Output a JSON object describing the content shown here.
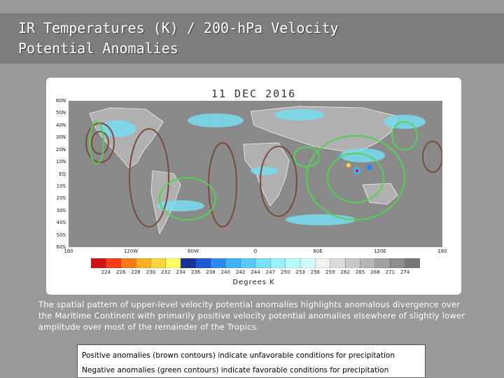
{
  "slide": {
    "title_line1": "IR Temperatures (K) / 200-hPa Velocity",
    "title_line2": "Potential Anomalies"
  },
  "map": {
    "date": "11 DEC 2016",
    "latitude_labels": [
      "60N",
      "50N",
      "40N",
      "30N",
      "20N",
      "10N",
      "EQ",
      "10S",
      "20S",
      "30S",
      "40S",
      "50S",
      "60S"
    ],
    "longitude_labels": [
      "180",
      "120W",
      "60W",
      "0",
      "60E",
      "120E",
      "180"
    ],
    "colorbar": {
      "labels": [
        "224",
        "226",
        "228",
        "230",
        "232",
        "234",
        "236",
        "238",
        "240",
        "242",
        "244",
        "247",
        "250",
        "253",
        "256",
        "259",
        "262",
        "265",
        "268",
        "271",
        "274"
      ],
      "colors": [
        "#d01414",
        "#ff3a14",
        "#ff7a14",
        "#ffae1e",
        "#ffd43a",
        "#ffff64",
        "#14329a",
        "#1a5ad2",
        "#2c8af0",
        "#3cb4ff",
        "#5ac8ff",
        "#78e0ff",
        "#96f0ff",
        "#b4ffff",
        "#d2ffff",
        "#f0f0f0",
        "#dcdcdc",
        "#c8c8c8",
        "#b4b4b4",
        "#a0a0a0",
        "#8c8c8c",
        "#787878"
      ],
      "units": "Degrees K"
    },
    "contour_colors": {
      "positive": "#7a4a3a",
      "negative": "#52d452"
    },
    "background_colors": {
      "ocean_gray": "#8a8a8a",
      "land_gray": "#b0b0b0",
      "cloud": "#78dcf0"
    }
  },
  "description": "The spatial pattern of upper-level velocity potential anomalies highlights anomalous divergence over the Maritime Continent  with primarily positive velocity potential anomalies elsewhere of slightly lower amplitude over most of the remainder of the Tropics.",
  "legend": {
    "positive": "Positive anomalies (brown contours) indicate unfavorable conditions for precipitation",
    "negative": "Negative anomalies (green contours) indicate favorable conditions for precipitation"
  }
}
